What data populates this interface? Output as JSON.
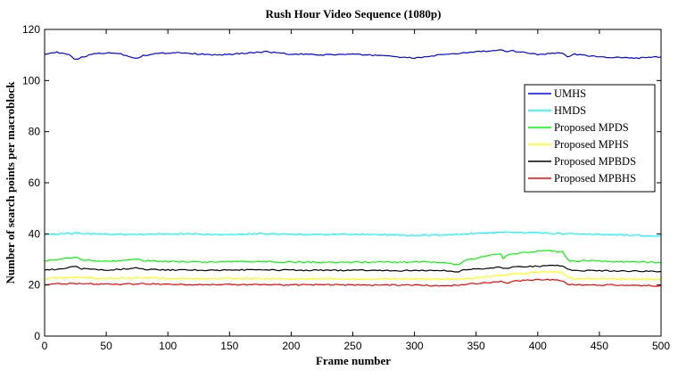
{
  "chart_data": {
    "type": "line",
    "title": "Rush Hour Video Sequence (1080p)",
    "xlabel": "Frame number",
    "ylabel": "Number of search points per macroblock",
    "xlim": [
      0,
      500
    ],
    "ylim": [
      0,
      120
    ],
    "xticks": [
      0,
      50,
      100,
      150,
      200,
      250,
      300,
      350,
      400,
      450,
      500
    ],
    "yticks": [
      0,
      20,
      40,
      60,
      80,
      100,
      120
    ],
    "grid": false,
    "legend_position": "right",
    "series": [
      {
        "name": "UMHS",
        "color": "#0000ff",
        "x": [
          0,
          10,
          20,
          25,
          30,
          40,
          50,
          60,
          70,
          75,
          80,
          90,
          100,
          110,
          120,
          130,
          140,
          150,
          160,
          170,
          180,
          190,
          200,
          210,
          220,
          230,
          240,
          250,
          260,
          270,
          280,
          290,
          300,
          310,
          320,
          330,
          340,
          350,
          360,
          370,
          375,
          380,
          390,
          400,
          410,
          420,
          425,
          430,
          440,
          450,
          460,
          470,
          480,
          490,
          500
        ],
        "y": [
          110.5,
          111,
          110,
          108.2,
          109,
          110.5,
          110.8,
          110.7,
          109.2,
          108.8,
          109.8,
          110.5,
          110.8,
          111,
          110.5,
          110.2,
          110,
          110.2,
          110.6,
          111,
          111.2,
          110.8,
          110.2,
          110.3,
          110,
          110.1,
          110.2,
          110.3,
          110,
          109.9,
          109.7,
          109,
          108.8,
          109.3,
          110,
          110.3,
          110.8,
          111.3,
          111.5,
          111.8,
          111.3,
          111.6,
          111,
          110.2,
          110.6,
          110.8,
          109.2,
          110.3,
          109.8,
          109.2,
          109,
          108.9,
          108.8,
          109,
          109.2
        ]
      },
      {
        "name": "HMDS",
        "color": "#00ffff",
        "x": [
          0,
          25,
          50,
          75,
          100,
          125,
          150,
          175,
          200,
          225,
          250,
          275,
          300,
          325,
          350,
          375,
          400,
          425,
          450,
          475,
          500
        ],
        "y": [
          39.8,
          40.2,
          39.9,
          39.8,
          40,
          39.9,
          39.8,
          40.1,
          39.8,
          39.7,
          39.9,
          39.7,
          39.3,
          39.6,
          40.2,
          40.6,
          40.4,
          40,
          39.8,
          39.5,
          39.2
        ]
      },
      {
        "name": "Proposed MPDS",
        "color": "#00ff00",
        "x": [
          0,
          10,
          20,
          25,
          30,
          40,
          50,
          60,
          70,
          75,
          80,
          100,
          130,
          160,
          200,
          230,
          260,
          290,
          310,
          330,
          335,
          340,
          350,
          360,
          370,
          372,
          375,
          380,
          390,
          400,
          410,
          420,
          425,
          430,
          440,
          460,
          480,
          500
        ],
        "y": [
          29.5,
          29.8,
          30.5,
          31,
          30,
          29.5,
          29.3,
          29.4,
          29.8,
          30.2,
          29.5,
          29.2,
          29,
          29.2,
          29,
          28.8,
          29,
          28.9,
          29,
          28.6,
          27.8,
          29.5,
          30.5,
          31.5,
          32,
          30.5,
          31.8,
          32.3,
          32.8,
          33.2,
          33.3,
          33,
          29.5,
          29.3,
          29.5,
          29.2,
          29,
          28.8
        ]
      },
      {
        "name": "Proposed MPHS",
        "color": "#ffff00",
        "x": [
          0,
          20,
          40,
          60,
          80,
          100,
          130,
          160,
          200,
          230,
          260,
          290,
          310,
          330,
          340,
          350,
          360,
          370,
          380,
          390,
          400,
          410,
          420,
          425,
          430,
          450,
          480,
          500
        ],
        "y": [
          22.5,
          23,
          22.7,
          22.6,
          22.8,
          22.6,
          22.4,
          22.6,
          22.4,
          22.5,
          22.3,
          22.4,
          22.3,
          22.2,
          22.4,
          22.8,
          23.3,
          23.8,
          24.2,
          24.6,
          25,
          25.2,
          24.8,
          22.8,
          22.4,
          22.5,
          22.3,
          22.2
        ]
      },
      {
        "name": "Proposed MPBDS",
        "color": "#000000",
        "x": [
          0,
          10,
          20,
          25,
          30,
          50,
          70,
          75,
          80,
          100,
          130,
          160,
          200,
          230,
          260,
          290,
          310,
          330,
          335,
          340,
          360,
          370,
          375,
          380,
          400,
          410,
          420,
          425,
          430,
          450,
          480,
          500
        ],
        "y": [
          26,
          26.1,
          26.8,
          27.2,
          26.3,
          25.9,
          26.4,
          26.8,
          26.1,
          25.9,
          25.8,
          25.9,
          25.8,
          25.7,
          25.8,
          25.6,
          25.7,
          25.5,
          25,
          26,
          26.6,
          27,
          26.3,
          27.2,
          27.3,
          27.5,
          27.6,
          26,
          25.6,
          25.6,
          25.4,
          25.3
        ]
      },
      {
        "name": "Proposed MPBHS",
        "color": "#ff0000",
        "x": [
          0,
          20,
          40,
          60,
          80,
          100,
          130,
          160,
          200,
          230,
          260,
          290,
          310,
          330,
          340,
          350,
          360,
          370,
          375,
          380,
          390,
          400,
          410,
          420,
          425,
          430,
          450,
          480,
          500
        ],
        "y": [
          20.3,
          20.5,
          20.4,
          20.3,
          20.5,
          20.3,
          20.1,
          20.2,
          20,
          20.1,
          19.9,
          20,
          19.8,
          19.8,
          20.2,
          20.6,
          21,
          21.3,
          20.6,
          21.5,
          21.8,
          22,
          22,
          21.7,
          20.2,
          20,
          20,
          19.8,
          19.7
        ]
      }
    ]
  }
}
